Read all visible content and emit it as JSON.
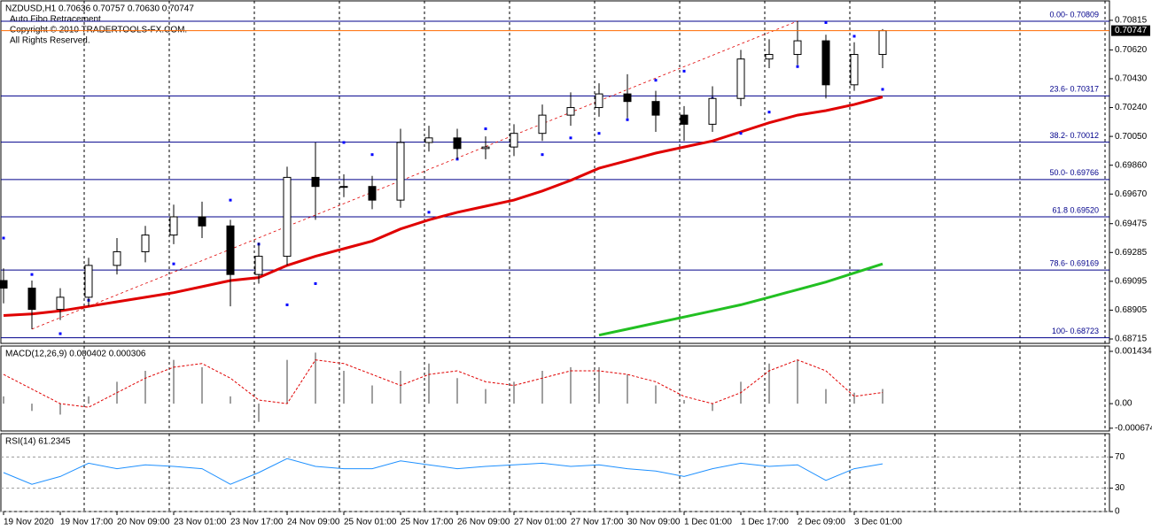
{
  "chart_data": [
    {
      "type": "candlestick",
      "title": "NZDUSD,H1  0.70636 0.70757 0.70630 0.70747",
      "annotations": [
        "Auto Fibo Retracement",
        "Copyright © 2010 TRADERTOOLS-FX.COM.",
        "All Rights Reserved."
      ],
      "categories": [
        "19 Nov 2020",
        null,
        "19 Nov 17:00",
        null,
        "20 Nov 09:00",
        null,
        "23 Nov 01:00",
        null,
        "23 Nov 17:00",
        null,
        "24 Nov 09:00",
        null,
        "25 Nov 01:00",
        null,
        "25 Nov 17:00",
        null,
        "26 Nov 09:00",
        null,
        "27 Nov 01:00",
        null,
        "27 Nov 17:00",
        null,
        "30 Nov 09:00",
        null,
        "1 Dec 01:00",
        null,
        "1 Dec 17:00",
        null,
        "2 Dec 09:00",
        null,
        "3 Dec 01:00",
        null
      ],
      "open": [
        0.691,
        0.6905,
        0.6891,
        0.6899,
        0.692,
        0.6929,
        0.694,
        0.6952,
        0.6946,
        0.6914,
        0.6926,
        0.6978,
        0.6972,
        0.6972,
        0.6963,
        0.7001,
        0.7004,
        0.6997,
        0.6998,
        0.7007,
        0.7019,
        0.7024,
        0.7033,
        0.7028,
        0.7019,
        0.7013,
        0.703,
        0.7056,
        0.7059,
        0.7068,
        0.7039,
        0.7059
      ],
      "high": [
        0.6918,
        0.691,
        0.6905,
        0.6925,
        0.6938,
        0.6946,
        0.696,
        0.6962,
        0.695,
        0.6935,
        0.6985,
        0.7001,
        0.698,
        0.6979,
        0.701,
        0.7012,
        0.701,
        0.7005,
        0.7013,
        0.7026,
        0.7034,
        0.704,
        0.7046,
        0.7035,
        0.7025,
        0.7038,
        0.7062,
        0.7069,
        0.7081,
        0.7072,
        0.7067,
        0.70757
      ],
      "low": [
        0.6895,
        0.6878,
        0.6884,
        0.6893,
        0.6914,
        0.6922,
        0.6934,
        0.6938,
        0.6893,
        0.6908,
        0.692,
        0.695,
        0.6965,
        0.6957,
        0.6958,
        0.6995,
        0.699,
        0.699,
        0.6992,
        0.7002,
        0.7012,
        0.7018,
        0.7017,
        0.7008,
        0.7002,
        0.7008,
        0.7025,
        0.705,
        0.7052,
        0.703,
        0.7035,
        0.705
      ],
      "close": [
        0.6905,
        0.6891,
        0.6899,
        0.692,
        0.6929,
        0.694,
        0.6952,
        0.6946,
        0.6914,
        0.6926,
        0.6978,
        0.6972,
        0.6972,
        0.6963,
        0.7001,
        0.7004,
        0.6997,
        0.6998,
        0.7007,
        0.7019,
        0.7024,
        0.7033,
        0.7028,
        0.7019,
        0.7013,
        0.703,
        0.7056,
        0.7059,
        0.7068,
        0.7039,
        0.7059,
        0.70747
      ],
      "overlays": [
        {
          "type": "line",
          "color": "#e00000",
          "values": [
            0.6887,
            0.6888,
            0.689,
            0.6893,
            0.6896,
            0.6899,
            0.6902,
            0.6906,
            0.691,
            0.6912,
            0.692,
            0.6926,
            0.6931,
            0.6936,
            0.6944,
            0.695,
            0.6955,
            0.6959,
            0.6963,
            0.6969,
            0.6976,
            0.6984,
            0.6989,
            0.6994,
            0.6998,
            0.7002,
            0.7008,
            0.7014,
            0.7019,
            0.7022,
            0.7026,
            0.7031
          ]
        },
        {
          "type": "line",
          "color": "#22c022",
          "values": [
            null,
            null,
            null,
            null,
            null,
            null,
            null,
            null,
            null,
            null,
            null,
            null,
            null,
            null,
            null,
            null,
            null,
            null,
            null,
            null,
            null,
            0.6874,
            0.6878,
            0.6882,
            0.6886,
            0.689,
            0.6894,
            0.6899,
            0.6904,
            0.6909,
            0.6915,
            0.6921
          ]
        },
        {
          "type": "dots",
          "color": "#0000ff",
          "values": [
            0.6938,
            0.6914,
            0.6875,
            0.6897,
            0.6925,
            0.6935,
            0.6921,
            0.6949,
            0.6963,
            0.6934,
            0.6894,
            0.6908,
            0.7001,
            0.6993,
            0.6984,
            0.6955,
            0.699,
            0.701,
            0.7004,
            0.6993,
            0.7004,
            0.7007,
            0.7016,
            0.7042,
            0.7048,
            0.703,
            0.7007,
            0.7021,
            0.7051,
            0.708,
            0.7071,
            0.7036
          ]
        }
      ],
      "levels_color": "#00008b",
      "levels": [
        {
          "value": 0.70809,
          "label": "0.00- 0.70809"
        },
        {
          "value": 0.70317,
          "label": "23.6- 0.70317"
        },
        {
          "value": 0.70012,
          "label": "38.2- 0.70012"
        },
        {
          "value": 0.69766,
          "label": "50.0- 0.69766"
        },
        {
          "value": 0.6952,
          "label": "61.8 0.69520"
        },
        {
          "value": 0.69169,
          "label": "78.6- 0.69169"
        },
        {
          "value": 0.68723,
          "label": "100- 0.68723"
        }
      ],
      "ylim": [
        0.68686,
        0.70943
      ],
      "yticks": [
        0.70815,
        {
          "value": 0.7062,
          "label": "0.70620"
        },
        {
          "value": 0.7043,
          "label": "0.70430"
        },
        {
          "value": 0.7024,
          "label": "0.70240"
        },
        {
          "value": 0.7005,
          "label": "0.70050"
        },
        {
          "value": 0.6986,
          "label": "0.69860"
        },
        {
          "value": 0.6967,
          "label": "0.69670"
        },
        0.69475,
        0.69285,
        0.69095,
        0.68905,
        0.68715
      ]
    },
    {
      "type": "macd",
      "title": "MACD(12,26,9) 0.000402 0.000306",
      "histogram": {
        "color": "#a0a0a0",
        "values": [
          0.0002,
          -0.0002,
          -0.0003,
          0.0002,
          0.0006,
          0.0009,
          0.0012,
          0.001,
          0.0002,
          -0.0005,
          0.0012,
          0.0014,
          0.0009,
          0.0005,
          0.0009,
          0.0011,
          0.0007,
          0.0004,
          0.0006,
          0.0009,
          0.001,
          0.001,
          0.0008,
          0.0005,
          0.0001,
          -0.0002,
          0.0006,
          0.0011,
          0.0012,
          0.0004,
          0.0003,
          0.000402
        ]
      },
      "signal": {
        "color": "#e00000",
        "values": [
          0.0008,
          0.0004,
          0.0,
          -0.0001,
          0.0003,
          0.0007,
          0.001,
          0.0011,
          0.0007,
          0.0001,
          0.0,
          0.0012,
          0.0011,
          0.0008,
          0.0005,
          0.0008,
          0.0009,
          0.0006,
          0.0005,
          0.0007,
          0.0009,
          0.0009,
          0.0008,
          0.0006,
          0.0002,
          0.0,
          0.0003,
          0.0009,
          0.0012,
          0.0009,
          0.0002,
          0.000306
        ]
      },
      "ylim": [
        -0.00075,
        0.00158
      ],
      "yticks": [
        0.001434,
        {
          "value": 0,
          "label": "0.00"
        },
        -0.000674
      ]
    },
    {
      "type": "line",
      "title": "RSI(14) 61.2345",
      "color": "#1e90ff",
      "values": [
        50,
        35,
        45,
        62,
        55,
        60,
        58,
        55,
        35,
        50,
        68,
        58,
        55,
        55,
        65,
        60,
        55,
        58,
        60,
        62,
        58,
        60,
        55,
        52,
        45,
        55,
        62,
        58,
        60,
        40,
        55,
        61.2345
      ],
      "ylim": [
        0,
        100
      ],
      "yticks": [
        70,
        30,
        0
      ],
      "grid": true
    }
  ]
}
